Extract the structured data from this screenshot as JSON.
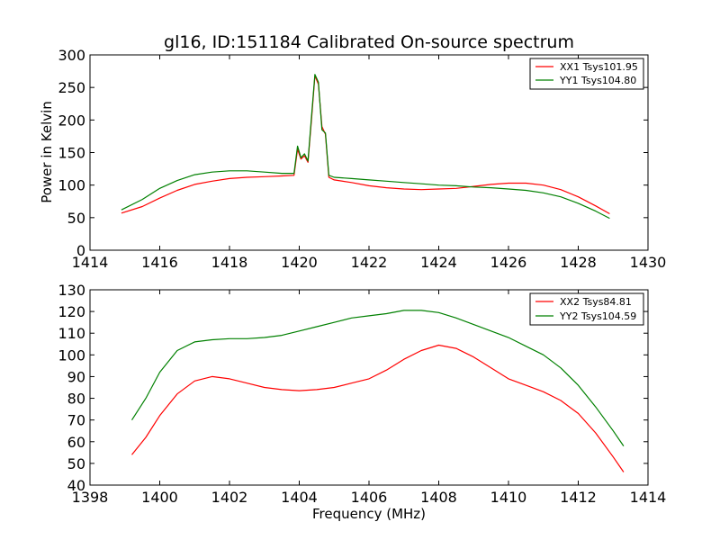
{
  "chart_data": [
    {
      "type": "line",
      "title": "gl16, ID:151184 Calibrated On-source spectrum",
      "xlabel": "",
      "ylabel": "Power in Kelvin",
      "xlim": [
        1414,
        1430
      ],
      "ylim": [
        0,
        300
      ],
      "xticks": [
        1414,
        1416,
        1418,
        1420,
        1422,
        1424,
        1426,
        1428,
        1430
      ],
      "yticks": [
        0,
        50,
        100,
        150,
        200,
        250,
        300
      ],
      "grid": false,
      "legend_position": "top-right",
      "series": [
        {
          "name": "XX1 Tsys101.95",
          "color": "#ff0000",
          "points": [
            [
              1414.9,
              57
            ],
            [
              1415.5,
              67
            ],
            [
              1416,
              80
            ],
            [
              1416.5,
              92
            ],
            [
              1417,
              101
            ],
            [
              1417.5,
              106
            ],
            [
              1418,
              110
            ],
            [
              1418.5,
              112
            ],
            [
              1419,
              113
            ],
            [
              1419.5,
              114
            ],
            [
              1419.85,
              115
            ],
            [
              1419.95,
              155
            ],
            [
              1420.05,
              140
            ],
            [
              1420.15,
              145
            ],
            [
              1420.25,
              135
            ],
            [
              1420.35,
              200
            ],
            [
              1420.45,
              268
            ],
            [
              1420.55,
              255
            ],
            [
              1420.65,
              190
            ],
            [
              1420.75,
              178
            ],
            [
              1420.85,
              112
            ],
            [
              1421,
              108
            ],
            [
              1421.5,
              104
            ],
            [
              1422,
              99
            ],
            [
              1422.5,
              96
            ],
            [
              1423,
              94
            ],
            [
              1423.5,
              93
            ],
            [
              1424,
              94
            ],
            [
              1424.5,
              95
            ],
            [
              1425,
              98
            ],
            [
              1425.5,
              101
            ],
            [
              1426,
              103
            ],
            [
              1426.5,
              103
            ],
            [
              1427,
              100
            ],
            [
              1427.5,
              93
            ],
            [
              1428,
              82
            ],
            [
              1428.5,
              68
            ],
            [
              1428.9,
              56
            ]
          ]
        },
        {
          "name": "YY1 Tsys104.80",
          "color": "#008000",
          "points": [
            [
              1414.9,
              62
            ],
            [
              1415.5,
              78
            ],
            [
              1416,
              95
            ],
            [
              1416.5,
              107
            ],
            [
              1417,
              116
            ],
            [
              1417.5,
              120
            ],
            [
              1418,
              122
            ],
            [
              1418.5,
              122
            ],
            [
              1419,
              120
            ],
            [
              1419.5,
              118
            ],
            [
              1419.85,
              118
            ],
            [
              1419.95,
              160
            ],
            [
              1420.05,
              142
            ],
            [
              1420.15,
              148
            ],
            [
              1420.25,
              137
            ],
            [
              1420.35,
              205
            ],
            [
              1420.45,
              270
            ],
            [
              1420.55,
              258
            ],
            [
              1420.65,
              185
            ],
            [
              1420.75,
              180
            ],
            [
              1420.85,
              115
            ],
            [
              1421,
              112
            ],
            [
              1421.5,
              110
            ],
            [
              1422,
              108
            ],
            [
              1422.5,
              106
            ],
            [
              1423,
              104
            ],
            [
              1423.5,
              102
            ],
            [
              1424,
              100
            ],
            [
              1424.5,
              99
            ],
            [
              1425,
              97
            ],
            [
              1425.5,
              96
            ],
            [
              1426,
              94
            ],
            [
              1426.5,
              92
            ],
            [
              1427,
              88
            ],
            [
              1427.5,
              82
            ],
            [
              1428,
              72
            ],
            [
              1428.5,
              60
            ],
            [
              1428.9,
              49
            ]
          ]
        }
      ]
    },
    {
      "type": "line",
      "title": "",
      "xlabel": "Frequency (MHz)",
      "ylabel": "",
      "xlim": [
        1398,
        1414
      ],
      "ylim": [
        40,
        130
      ],
      "xticks": [
        1398,
        1400,
        1402,
        1404,
        1406,
        1408,
        1410,
        1412,
        1414
      ],
      "yticks": [
        40,
        50,
        60,
        70,
        80,
        90,
        100,
        110,
        120,
        130
      ],
      "grid": false,
      "legend_position": "top-right",
      "series": [
        {
          "name": "XX2 Tsys84.81",
          "color": "#ff0000",
          "points": [
            [
              1399.2,
              54
            ],
            [
              1399.6,
              62
            ],
            [
              1400,
              72
            ],
            [
              1400.5,
              82
            ],
            [
              1401,
              88
            ],
            [
              1401.5,
              90
            ],
            [
              1402,
              89
            ],
            [
              1402.5,
              87
            ],
            [
              1403,
              85
            ],
            [
              1403.5,
              84
            ],
            [
              1404,
              83.5
            ],
            [
              1404.5,
              84
            ],
            [
              1405,
              85
            ],
            [
              1405.5,
              87
            ],
            [
              1406,
              89
            ],
            [
              1406.5,
              93
            ],
            [
              1407,
              98
            ],
            [
              1407.5,
              102
            ],
            [
              1408,
              104.5
            ],
            [
              1408.5,
              103
            ],
            [
              1409,
              99
            ],
            [
              1409.5,
              94
            ],
            [
              1410,
              89
            ],
            [
              1410.5,
              86
            ],
            [
              1411,
              83
            ],
            [
              1411.5,
              79
            ],
            [
              1412,
              73
            ],
            [
              1412.5,
              64
            ],
            [
              1413,
              53
            ],
            [
              1413.3,
              46
            ]
          ]
        },
        {
          "name": "YY2 Tsys104.59",
          "color": "#008000",
          "points": [
            [
              1399.2,
              70
            ],
            [
              1399.6,
              80
            ],
            [
              1400,
              92
            ],
            [
              1400.5,
              102
            ],
            [
              1401,
              106
            ],
            [
              1401.5,
              107
            ],
            [
              1402,
              107.5
            ],
            [
              1402.5,
              107.5
            ],
            [
              1403,
              108
            ],
            [
              1403.5,
              109
            ],
            [
              1404,
              111
            ],
            [
              1404.5,
              113
            ],
            [
              1405,
              115
            ],
            [
              1405.5,
              117
            ],
            [
              1406,
              118
            ],
            [
              1406.5,
              119
            ],
            [
              1407,
              120.5
            ],
            [
              1407.5,
              120.5
            ],
            [
              1408,
              119.5
            ],
            [
              1408.5,
              117
            ],
            [
              1409,
              114
            ],
            [
              1409.5,
              111
            ],
            [
              1410,
              108
            ],
            [
              1410.5,
              104
            ],
            [
              1411,
              100
            ],
            [
              1411.5,
              94
            ],
            [
              1412,
              86
            ],
            [
              1412.5,
              76
            ],
            [
              1413,
              65
            ],
            [
              1413.3,
              58
            ]
          ]
        }
      ]
    }
  ]
}
